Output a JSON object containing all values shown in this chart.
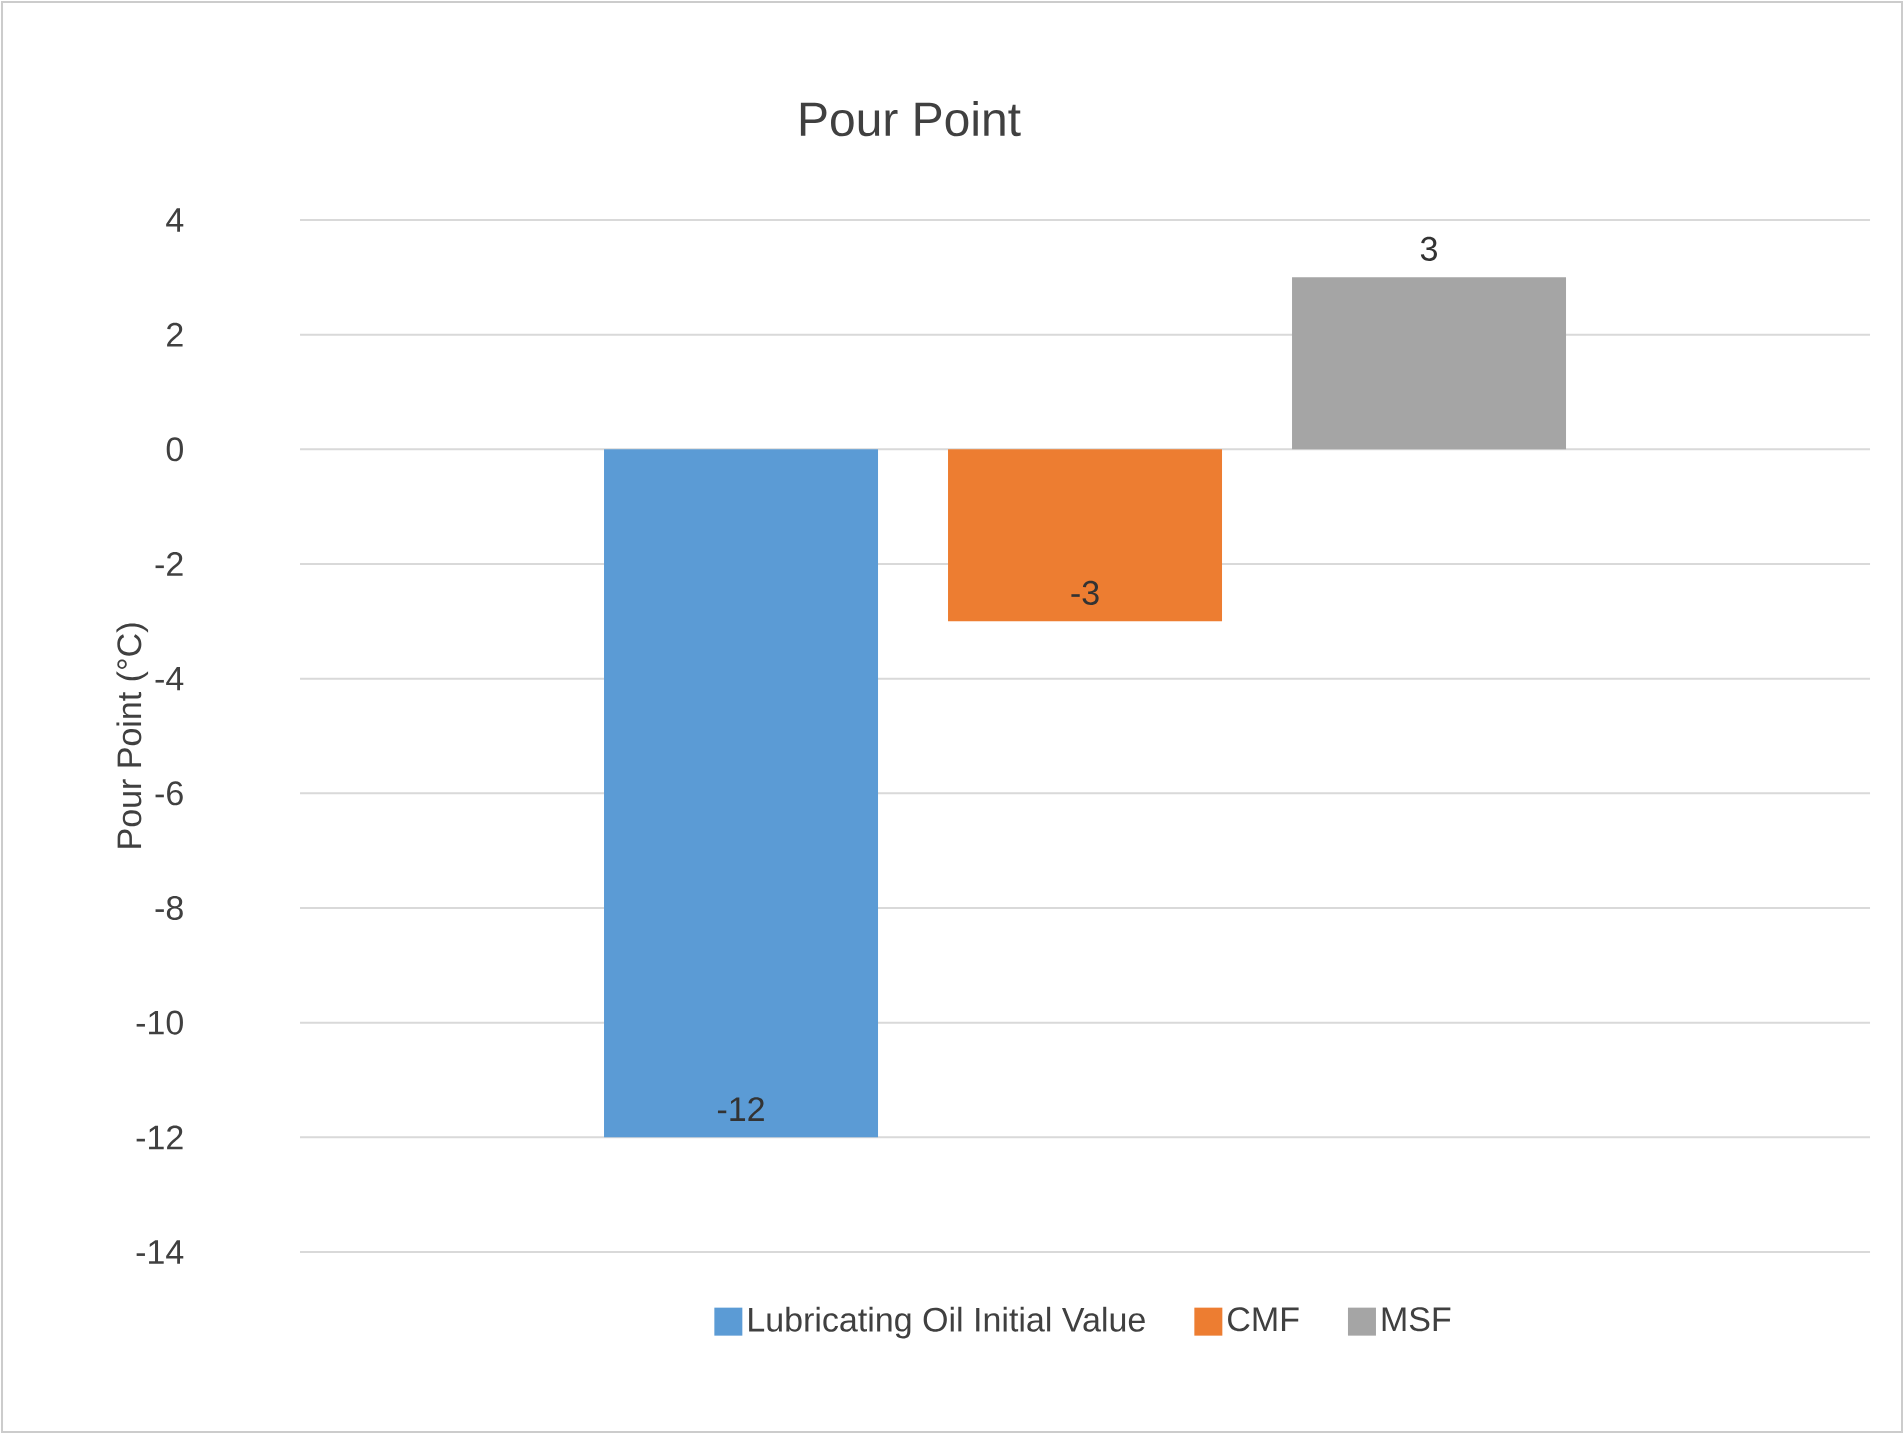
{
  "chart_data": {
    "type": "bar",
    "title": "Pour Point",
    "ylabel": "Pour Point (°C)",
    "categories": [
      null
    ],
    "series": [
      {
        "name": "Lubricating Oil Initial Value",
        "color": "#5b9bd5",
        "values": [
          -12
        ]
      },
      {
        "name": "CMF",
        "color": "#ed7d31",
        "values": [
          -3
        ]
      },
      {
        "name": "MSF",
        "color": "#a5a5a5",
        "values": [
          3
        ]
      }
    ],
    "ylim": [
      -14,
      4
    ],
    "yticks": [
      -14,
      -12,
      -10,
      -8,
      -6,
      -4,
      -2,
      0,
      2,
      4
    ],
    "grid": "y",
    "legend": "bottom",
    "data_labels": true
  }
}
